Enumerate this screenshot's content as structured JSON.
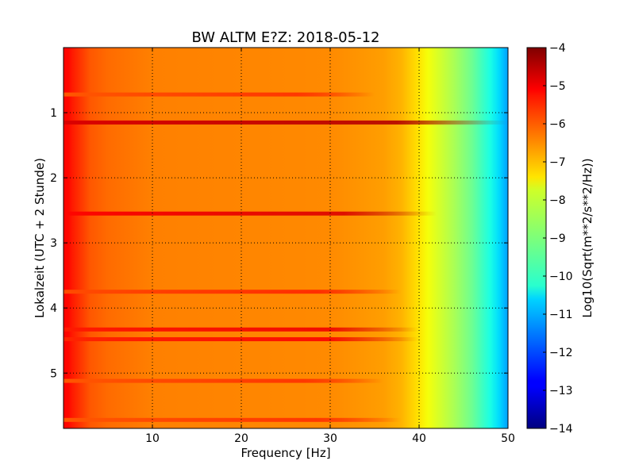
{
  "chart_data": {
    "type": "heatmap",
    "title": "BW ALTM E?Z: 2018-05-12",
    "xlabel": "Frequency [Hz]",
    "ylabel": "Lokalzeit (UTC + 2 Stunde)",
    "xlim": [
      0,
      50
    ],
    "ylim": [
      5.85,
      0
    ],
    "x_ticks": [
      10,
      20,
      30,
      40,
      50
    ],
    "x_tick_labels": [
      "10",
      "20",
      "30",
      "40",
      "50"
    ],
    "y_ticks": [
      1,
      2,
      3,
      4,
      5
    ],
    "y_tick_labels": [
      "1",
      "2",
      "3",
      "4",
      "5"
    ],
    "grid": true,
    "grid_style": "dotted",
    "colormap": "jet",
    "colorbar": {
      "label": "Log10(Sqrt(m**2/s**2/Hz))",
      "range": [
        -14,
        -4
      ],
      "ticks": [
        -4,
        -5,
        -6,
        -7,
        -8,
        -9,
        -10,
        -11,
        -12,
        -13,
        -14
      ],
      "tick_labels": [
        "−4",
        "−5",
        "−6",
        "−7",
        "−8",
        "−9",
        "−10",
        "−11",
        "−12",
        "−13",
        "−14"
      ]
    },
    "spectrum_profile": {
      "frequency_hz": [
        0.5,
        1,
        2,
        3,
        5,
        10,
        20,
        30,
        36,
        38,
        40,
        41,
        42,
        43,
        44,
        45,
        46,
        47,
        48,
        49,
        50
      ],
      "log10_amplitude": [
        -5.3,
        -5.5,
        -5.8,
        -6.1,
        -6.3,
        -6.5,
        -6.55,
        -6.6,
        -6.8,
        -7.0,
        -7.5,
        -7.85,
        -8.1,
        -8.35,
        -8.6,
        -8.9,
        -9.2,
        -9.6,
        -10.0,
        -10.6,
        -11.2
      ]
    },
    "bands": [
      {
        "time_h": 1.15,
        "log10_amplitude": -4.9,
        "fmax_hz": 50
      },
      {
        "time_h": 2.55,
        "log10_amplitude": -5.3,
        "fmax_hz": 42
      },
      {
        "time_h": 4.33,
        "log10_amplitude": -5.5,
        "fmax_hz": 40
      },
      {
        "time_h": 4.48,
        "log10_amplitude": -5.6,
        "fmax_hz": 40
      },
      {
        "time_h": 0.72,
        "log10_amplitude": -6.1,
        "fmax_hz": 35
      },
      {
        "time_h": 3.75,
        "log10_amplitude": -6.0,
        "fmax_hz": 38
      },
      {
        "time_h": 5.12,
        "log10_amplitude": -6.1,
        "fmax_hz": 36
      },
      {
        "time_h": 5.72,
        "log10_amplitude": -6.1,
        "fmax_hz": 38
      }
    ]
  }
}
